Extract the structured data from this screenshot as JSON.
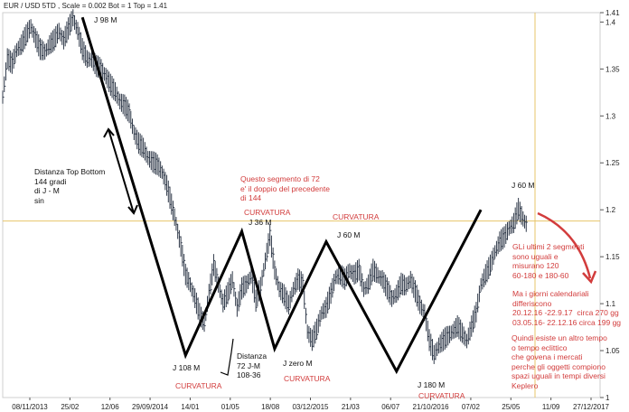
{
  "header": "EUR / USD 5TD , Scale = 0.002 Bot = 1 Top = 1.41",
  "chart_data": {
    "type": "line",
    "ylim": [
      1.0,
      1.41
    ],
    "y_ticks": [
      "1.41",
      "1.4",
      "1.35",
      "1.3",
      "1.25",
      "1.2",
      "1.15",
      "1.1",
      "1.05",
      "1"
    ],
    "x_ticks": [
      "08/11/2013",
      "25/02",
      "12/06",
      "29/09/2014",
      "14/01",
      "01/05",
      "18/08",
      "03/12/2015",
      "21/03",
      "06/07",
      "21/10/2016",
      "07/02",
      "25/05",
      "11/09",
      "27/12/2017"
    ],
    "horizontal_level": 1.188,
    "series": [
      {
        "style": "price bars",
        "points": [
          [
            0,
            1.32
          ],
          [
            1,
            1.36
          ],
          [
            2,
            1.355
          ],
          [
            3,
            1.37
          ],
          [
            4,
            1.375
          ],
          [
            5,
            1.385
          ],
          [
            6,
            1.395
          ],
          [
            7,
            1.382
          ],
          [
            8,
            1.37
          ],
          [
            9,
            1.368
          ],
          [
            10,
            1.375
          ],
          [
            11,
            1.38
          ],
          [
            12,
            1.39
          ],
          [
            13,
            1.38
          ],
          [
            14,
            1.392
          ],
          [
            15,
            1.404
          ],
          [
            16,
            1.39
          ],
          [
            17,
            1.37
          ],
          [
            18,
            1.36
          ],
          [
            19,
            1.36
          ],
          [
            20,
            1.352
          ],
          [
            21,
            1.35
          ],
          [
            22,
            1.342
          ],
          [
            23,
            1.332
          ],
          [
            24,
            1.325
          ],
          [
            25,
            1.315
          ],
          [
            26,
            1.31
          ],
          [
            27,
            1.302
          ],
          [
            28,
            1.282
          ],
          [
            29,
            1.27
          ],
          [
            30,
            1.265
          ],
          [
            31,
            1.255
          ],
          [
            32,
            1.25
          ],
          [
            33,
            1.247
          ],
          [
            34,
            1.24
          ],
          [
            35,
            1.225
          ],
          [
            36,
            1.205
          ],
          [
            37,
            1.185
          ],
          [
            38,
            1.16
          ],
          [
            39,
            1.13
          ],
          [
            40,
            1.12
          ],
          [
            41,
            1.105
          ],
          [
            42,
            1.088
          ],
          [
            43,
            1.078
          ],
          [
            44,
            1.11
          ],
          [
            45,
            1.14
          ],
          [
            46,
            1.12
          ],
          [
            47,
            1.1
          ],
          [
            48,
            1.11
          ],
          [
            49,
            1.125
          ],
          [
            50,
            1.095
          ],
          [
            51,
            1.115
          ],
          [
            52,
            1.12
          ],
          [
            53,
            1.13
          ],
          [
            54,
            1.102
          ],
          [
            55,
            1.118
          ],
          [
            56,
            1.145
          ],
          [
            57,
            1.172
          ],
          [
            58,
            1.135
          ],
          [
            59,
            1.115
          ],
          [
            60,
            1.108
          ],
          [
            61,
            1.098
          ],
          [
            62,
            1.115
          ],
          [
            63,
            1.125
          ],
          [
            64,
            1.12
          ],
          [
            65,
            1.07
          ],
          [
            66,
            1.06
          ],
          [
            67,
            1.072
          ],
          [
            68,
            1.09
          ],
          [
            69,
            1.095
          ],
          [
            70,
            1.11
          ],
          [
            71,
            1.128
          ],
          [
            72,
            1.13
          ],
          [
            73,
            1.125
          ],
          [
            74,
            1.135
          ],
          [
            75,
            1.13
          ],
          [
            76,
            1.135
          ],
          [
            77,
            1.115
          ],
          [
            78,
            1.12
          ],
          [
            79,
            1.135
          ],
          [
            80,
            1.13
          ],
          [
            81,
            1.125
          ],
          [
            82,
            1.115
          ],
          [
            83,
            1.105
          ],
          [
            84,
            1.11
          ],
          [
            85,
            1.12
          ],
          [
            86,
            1.118
          ],
          [
            87,
            1.125
          ],
          [
            88,
            1.112
          ],
          [
            89,
            1.098
          ],
          [
            90,
            1.09
          ],
          [
            91,
            1.06
          ],
          [
            92,
            1.045
          ],
          [
            93,
            1.055
          ],
          [
            94,
            1.06
          ],
          [
            95,
            1.065
          ],
          [
            96,
            1.07
          ],
          [
            97,
            1.075
          ],
          [
            98,
            1.068
          ],
          [
            99,
            1.06
          ],
          [
            100,
            1.075
          ],
          [
            101,
            1.09
          ],
          [
            102,
            1.12
          ],
          [
            103,
            1.13
          ],
          [
            104,
            1.14
          ],
          [
            105,
            1.155
          ],
          [
            106,
            1.165
          ],
          [
            107,
            1.17
          ],
          [
            108,
            1.18
          ],
          [
            109,
            1.185
          ],
          [
            110,
            1.2
          ],
          [
            111,
            1.19
          ],
          [
            112,
            1.182
          ]
        ]
      }
    ],
    "swing_path": [
      [
        17,
        1.405
      ],
      [
        39,
        1.045
      ],
      [
        51,
        1.177
      ],
      [
        58,
        1.052
      ],
      [
        69,
        1.166
      ],
      [
        84,
        1.028
      ],
      [
        102,
        1.2
      ]
    ],
    "annotations": [
      {
        "text": "J 98 M",
        "color": "black"
      },
      {
        "text": "Distanza Top Bottom\n144 gradi\ndi J - M\nsin",
        "color": "black"
      },
      {
        "text": "Questo segmento di 72\ne' il doppio del precedente\ndi 144",
        "color": "red"
      },
      {
        "text": "CURVATURA",
        "color": "red"
      },
      {
        "text": "J 36 M",
        "color": "black"
      },
      {
        "text": "CURVATURA",
        "color": "red"
      },
      {
        "text": "J 60 M",
        "color": "black"
      },
      {
        "text": "J 60 M",
        "color": "black"
      },
      {
        "text": "GLi ultimi 2 segmenti\nsono uguali e\nmisurano 120\n60-180 e 180-60",
        "color": "red"
      },
      {
        "text": "Ma i giorni calendariali\ndifferiscono\n20.12.16 -22.9.17  circa 270 gg\n03.05.16- 22.12.16 circa 199 gg",
        "color": "red"
      },
      {
        "text": "Quindi esiste un altro tempo\no tempo eclittico\nche govena i mercati\nperche gli oggetti compiono\nspazi uguali in tempi diversi\nKeplero",
        "color": "red"
      },
      {
        "text": "J 108 M",
        "color": "black"
      },
      {
        "text": "CURVATURA",
        "color": "red"
      },
      {
        "text": "Distanza\n72 J-M\n108-36",
        "color": "black"
      },
      {
        "text": "J zero M",
        "color": "black"
      },
      {
        "text": "CURVATURA",
        "color": "red"
      },
      {
        "text": "J 180 M",
        "color": "black"
      },
      {
        "text": "CURVATURA",
        "color": "red"
      }
    ]
  }
}
